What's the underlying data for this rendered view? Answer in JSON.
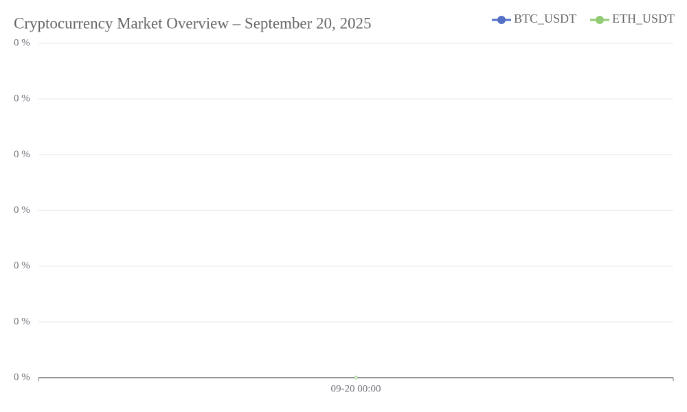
{
  "chart_data": {
    "type": "line",
    "title": "Cryptocurrency Market Overview – September 20, 2025",
    "categories": [
      "09-20 00:00"
    ],
    "series": [
      {
        "name": "BTC_USDT",
        "color": "#5470c6",
        "values": [
          0
        ]
      },
      {
        "name": "ETH_USDT",
        "color": "#91cc75",
        "values": [
          0
        ]
      }
    ],
    "ylim": [
      0,
      0.3
    ],
    "yticks": [
      {
        "value": 0,
        "label": "0 %"
      },
      {
        "value": 0.05,
        "label": "0 %"
      },
      {
        "value": 0.1,
        "label": "0 %"
      },
      {
        "value": 0.15,
        "label": "0 %"
      },
      {
        "value": 0.2,
        "label": "0 %"
      },
      {
        "value": 0.25,
        "label": "0 %"
      },
      {
        "value": 0.3,
        "label": "0 %"
      }
    ],
    "grid": true,
    "legend": "top-right"
  }
}
